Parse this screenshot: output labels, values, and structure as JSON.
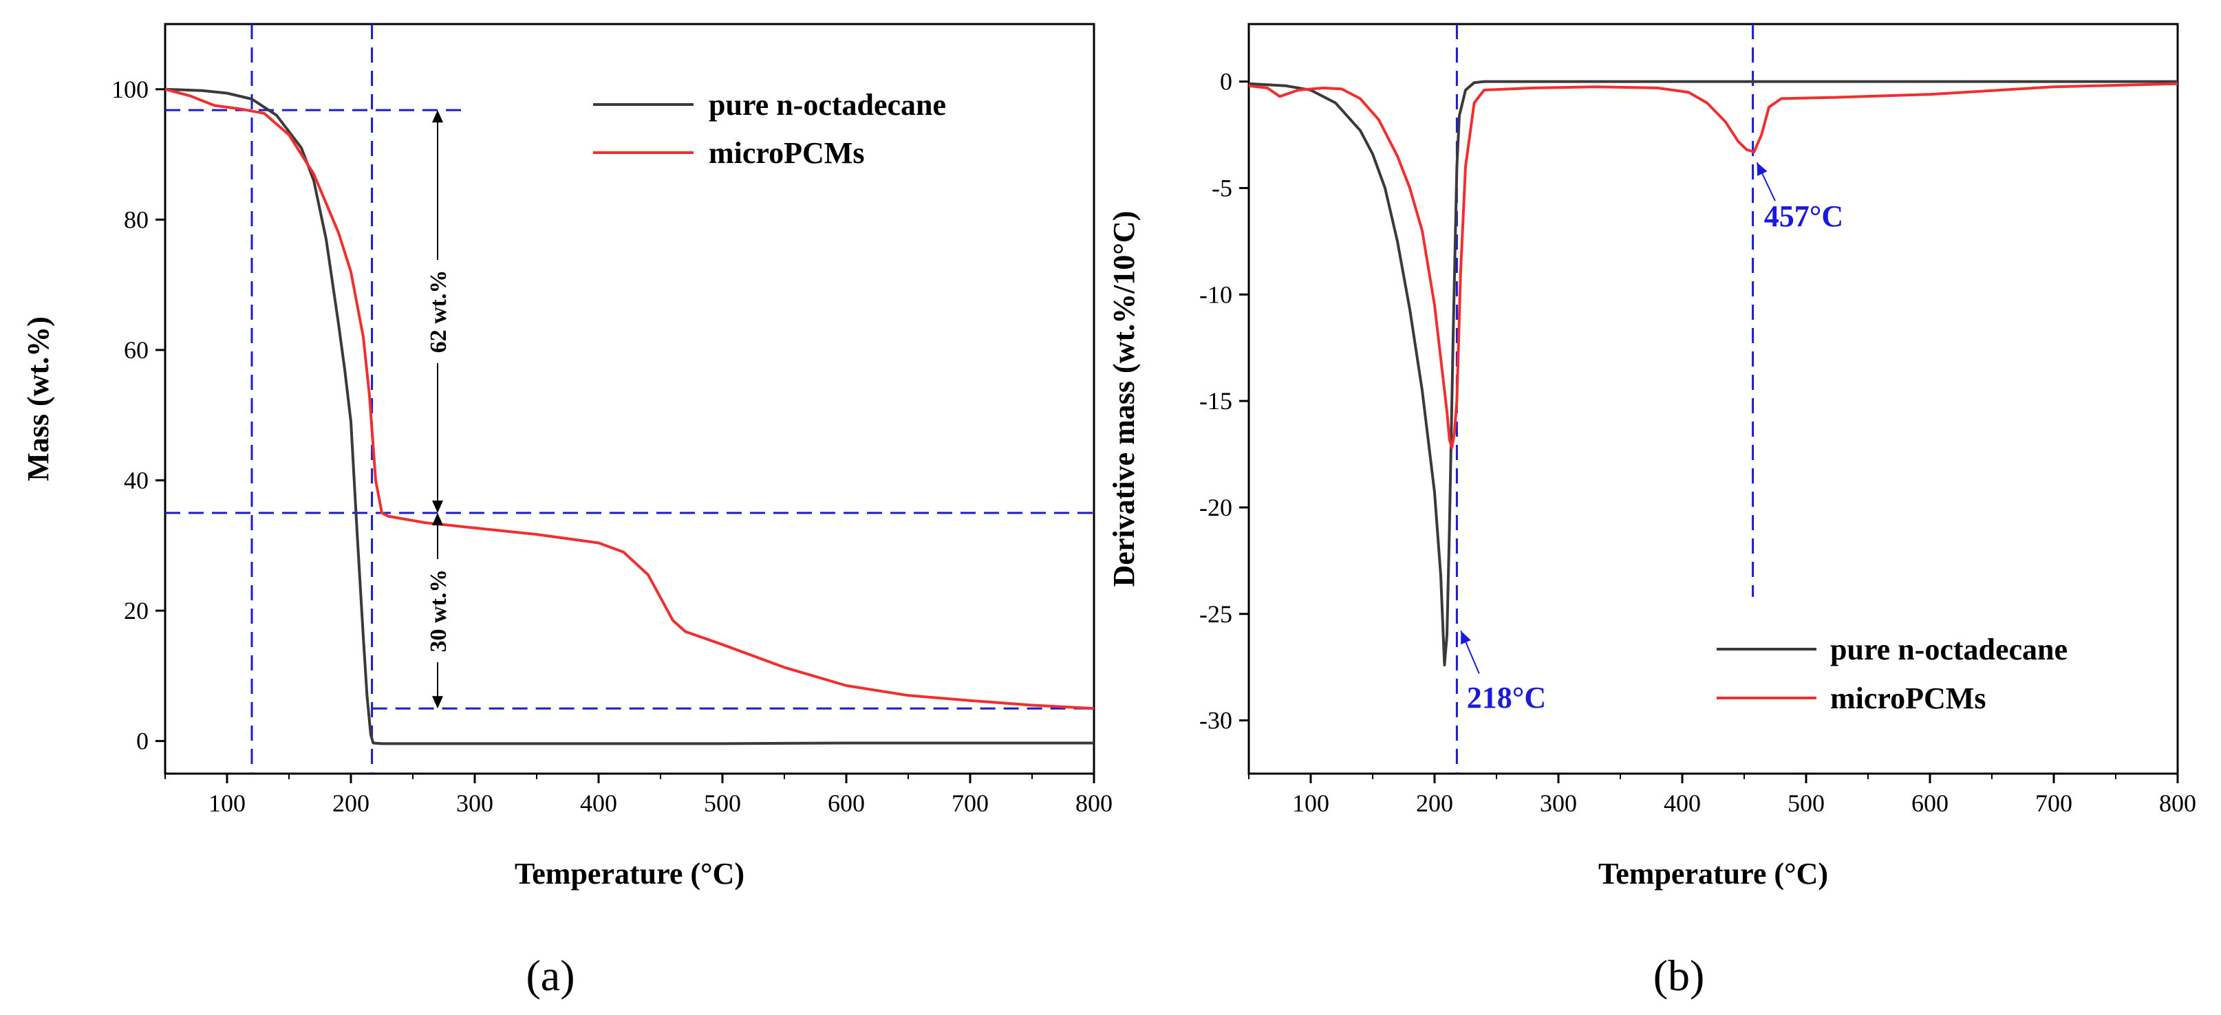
{
  "colors": {
    "pure": "#3a3a3a",
    "micro": "#f03030",
    "guide": "#1a1ad8",
    "annotation_text": "#1a1ad8"
  },
  "chart_data": [
    {
      "type": "line",
      "panel_label": "(a)",
      "xlabel": "Temperature (°C)",
      "ylabel": "Mass (wt.%)",
      "xlim": [
        50,
        800
      ],
      "ylim": [
        -5,
        110
      ],
      "x_ticks": [
        100,
        200,
        300,
        400,
        500,
        600,
        700,
        800
      ],
      "y_ticks": [
        0,
        20,
        40,
        60,
        80,
        100
      ],
      "series": [
        {
          "name": "pure n-octadecane",
          "color": "#3a3a3a",
          "x": [
            50,
            80,
            100,
            120,
            140,
            160,
            170,
            180,
            190,
            195,
            200,
            205,
            210,
            213,
            216,
            218,
            225,
            300,
            400,
            500,
            600,
            700,
            800
          ],
          "y": [
            100,
            99.8,
            99.4,
            98.5,
            96,
            91,
            86,
            77,
            64,
            57,
            49,
            32,
            16,
            7,
            1,
            -0.3,
            -0.4,
            -0.4,
            -0.4,
            -0.4,
            -0.3,
            -0.3,
            -0.3
          ]
        },
        {
          "name": "microPCMs",
          "color": "#f03030",
          "x": [
            50,
            70,
            90,
            110,
            130,
            150,
            170,
            190,
            200,
            210,
            215,
            220,
            225,
            230,
            260,
            300,
            350,
            400,
            420,
            440,
            450,
            460,
            470,
            500,
            550,
            600,
            650,
            700,
            750,
            800
          ],
          "y": [
            100,
            99,
            97.5,
            97,
            96.3,
            93,
            87,
            78,
            72,
            62,
            53,
            40,
            35,
            34.5,
            33.5,
            32.7,
            31.7,
            30.4,
            29,
            25.5,
            22,
            18.5,
            16.8,
            14.8,
            11.3,
            8.5,
            7,
            6.2,
            5.5,
            5
          ]
        }
      ],
      "guides": {
        "vertical_x": [
          120,
          217
        ],
        "horizontal_y": [
          96.8,
          35,
          5
        ]
      },
      "annotations": [
        {
          "text": "62 wt.%",
          "x": 270,
          "y_from": 96.8,
          "y_to": 35
        },
        {
          "text": "30 wt.%",
          "x": 270,
          "y_from": 35,
          "y_to": 5
        }
      ]
    },
    {
      "type": "line",
      "panel_label": "(b)",
      "xlabel": "Temperature (°C)",
      "ylabel": "Derivative mass (wt.%/10°C)",
      "xlim": [
        50,
        800
      ],
      "ylim": [
        -32.5,
        2.7
      ],
      "x_ticks": [
        100,
        200,
        300,
        400,
        500,
        600,
        700,
        800
      ],
      "y_ticks": [
        0,
        -5,
        -10,
        -15,
        -20,
        -25,
        -30
      ],
      "series": [
        {
          "name": "pure n-octadecane",
          "color": "#3a3a3a",
          "x": [
            50,
            80,
            100,
            120,
            140,
            150,
            160,
            170,
            180,
            190,
            200,
            205,
            208,
            210,
            212,
            215,
            218,
            220,
            225,
            232,
            240,
            300,
            500,
            800
          ],
          "y": [
            -0.1,
            -0.2,
            -0.4,
            -1,
            -2.3,
            -3.4,
            -5,
            -7.5,
            -10.7,
            -14.5,
            -19.3,
            -23.2,
            -27.4,
            -26,
            -21,
            -12,
            -4,
            -1.6,
            -0.4,
            -0.05,
            0,
            0,
            0,
            0
          ]
        },
        {
          "name": "microPCMs",
          "color": "#f03030",
          "x": [
            50,
            65,
            75,
            90,
            110,
            125,
            140,
            155,
            170,
            180,
            190,
            200,
            205,
            210,
            212,
            214,
            216,
            218,
            221,
            225,
            232,
            240,
            280,
            330,
            380,
            405,
            420,
            435,
            445,
            452,
            458,
            464,
            470,
            480,
            520,
            600,
            700,
            800
          ],
          "y": [
            -0.2,
            -0.3,
            -0.7,
            -0.4,
            -0.3,
            -0.35,
            -0.8,
            -1.8,
            -3.5,
            -5,
            -7,
            -10.5,
            -13,
            -15.5,
            -16.8,
            -17.2,
            -16.5,
            -15,
            -9,
            -4,
            -1,
            -0.4,
            -0.3,
            -0.25,
            -0.3,
            -0.5,
            -1,
            -1.9,
            -2.8,
            -3.2,
            -3.3,
            -2.5,
            -1.2,
            -0.8,
            -0.75,
            -0.6,
            -0.25,
            -0.1
          ]
        }
      ],
      "guides": {
        "vertical_x": [
          218,
          457
        ]
      },
      "annotations": [
        {
          "text": "218°C",
          "x": 218
        },
        {
          "text": "457°C",
          "x": 457
        }
      ]
    }
  ]
}
